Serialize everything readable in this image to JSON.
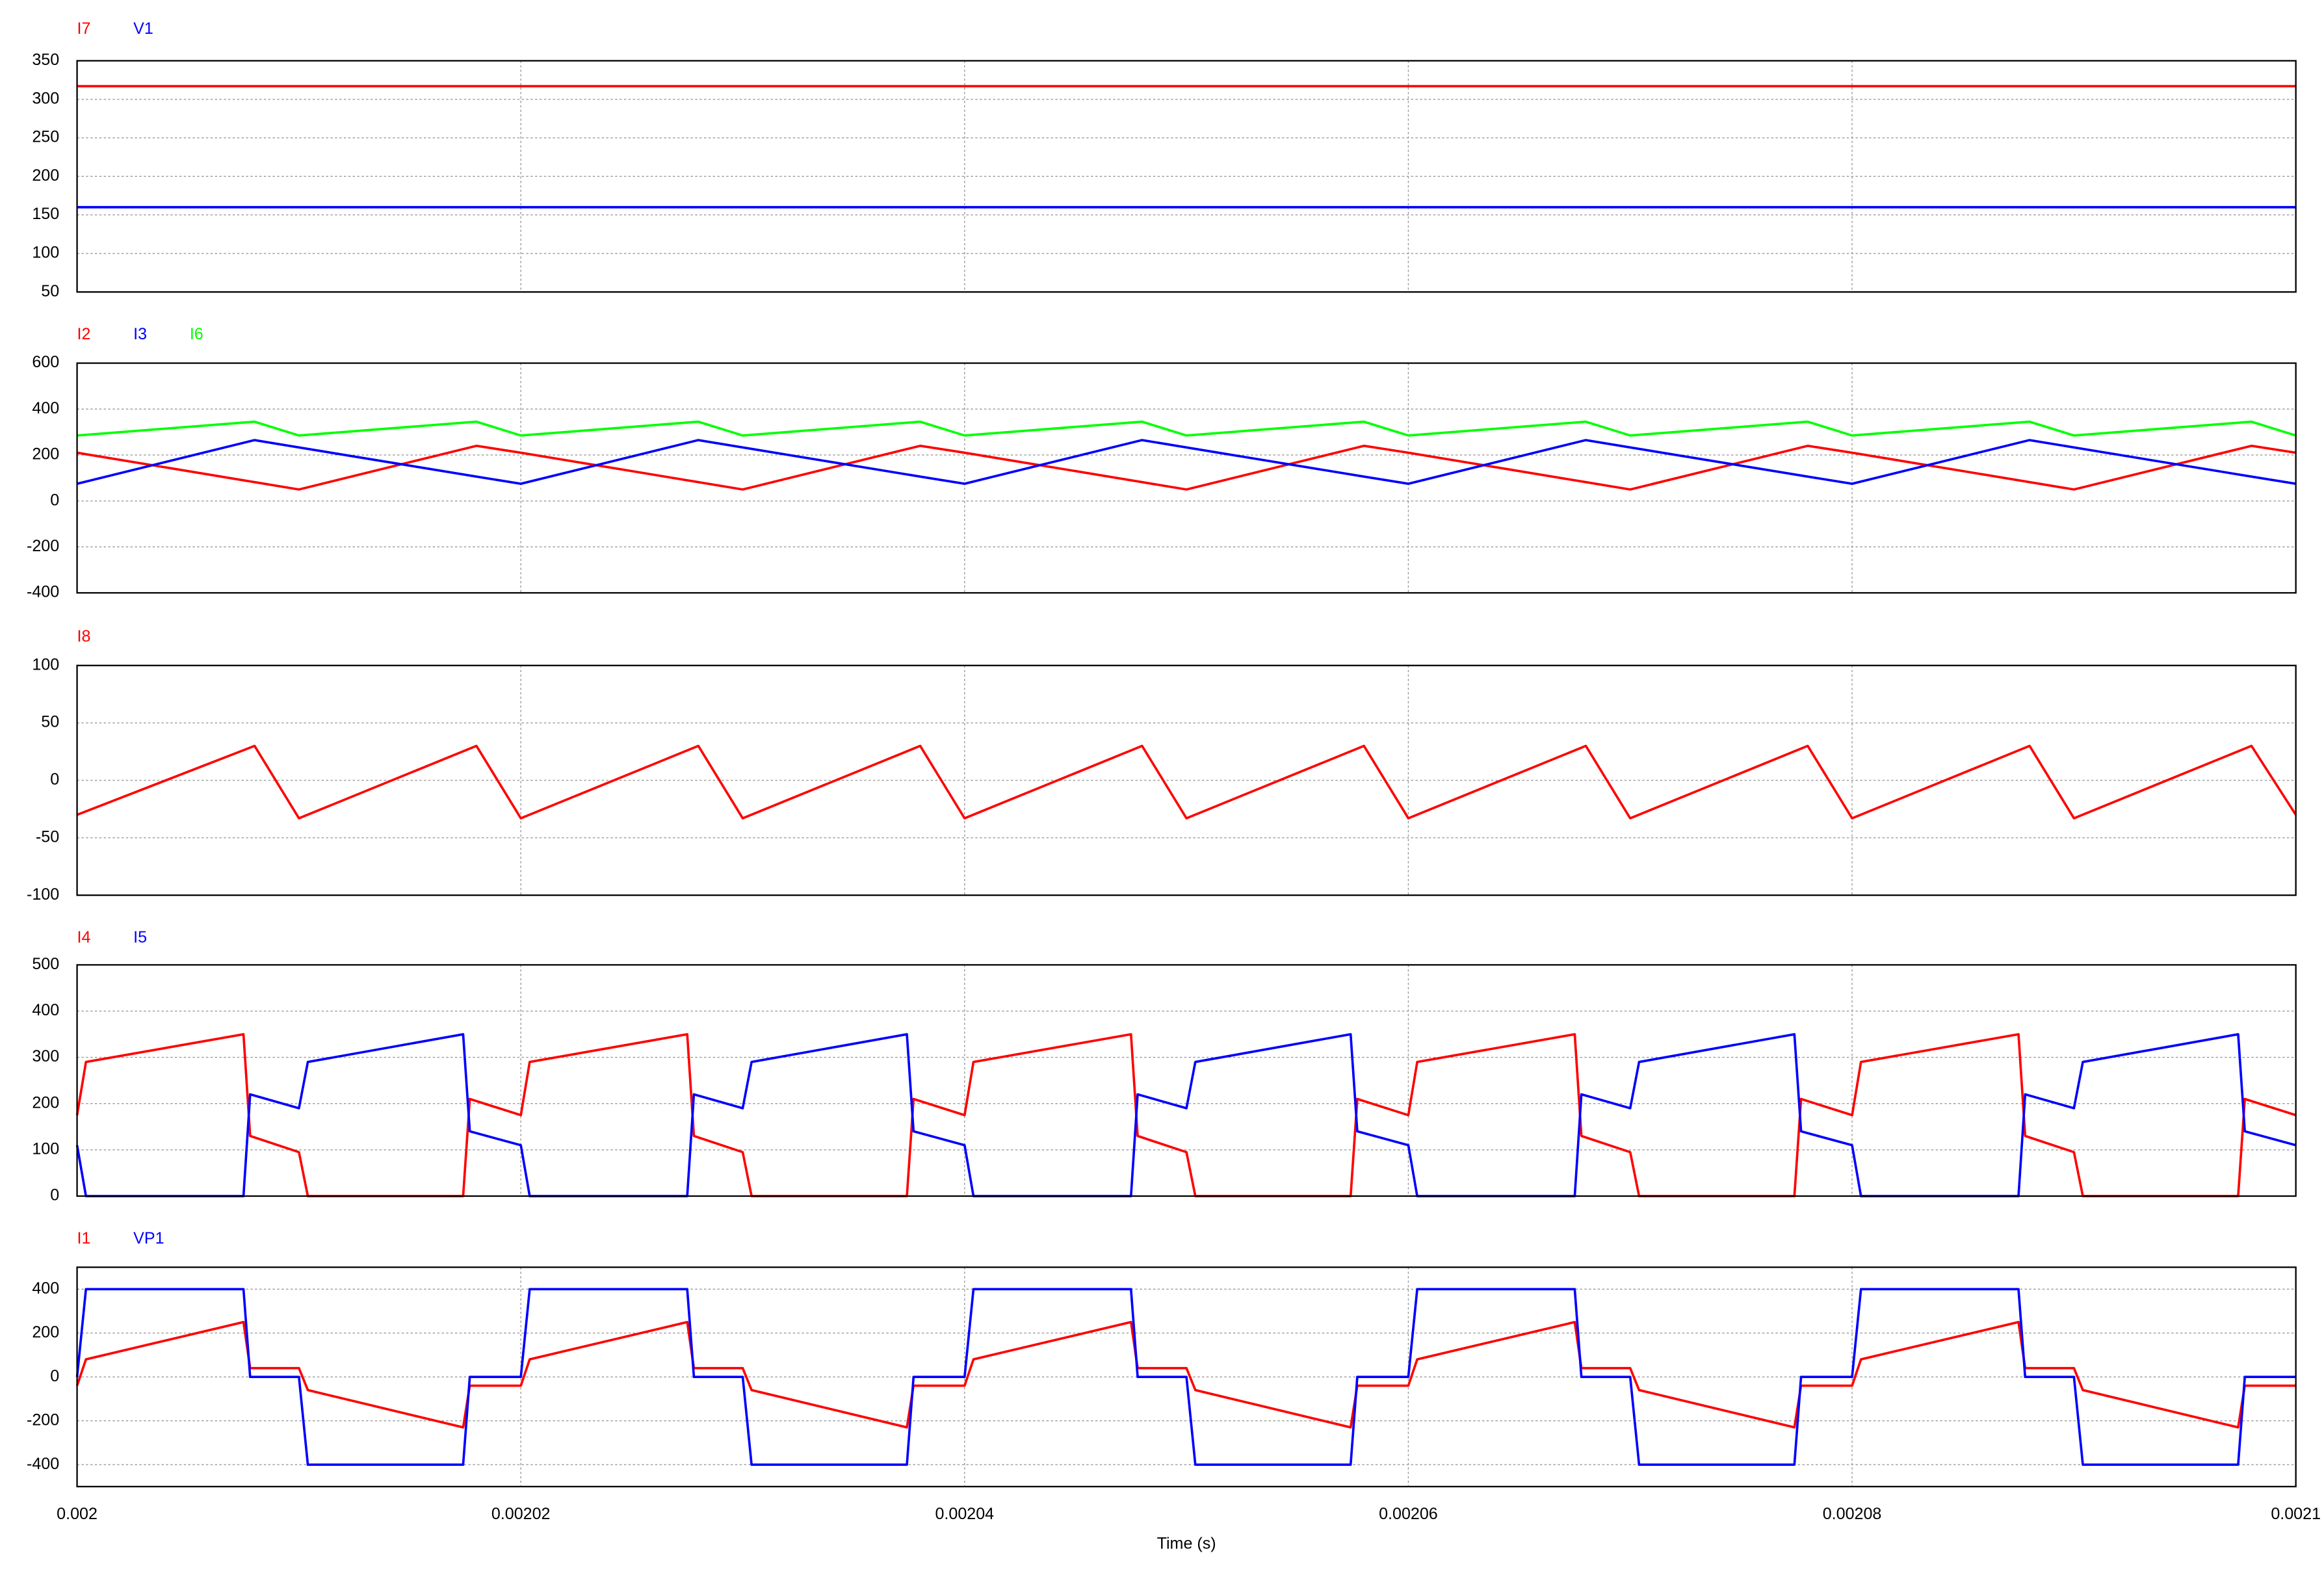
{
  "chart_data": [
    {
      "type": "line",
      "xlim": [
        0.002,
        0.0021
      ],
      "xticks": [
        0.002,
        0.00202,
        0.00204,
        0.00206,
        0.00208,
        0.0021
      ],
      "ylim": [
        50,
        350
      ],
      "yticks": [
        50,
        100,
        150,
        200,
        250,
        300,
        350
      ],
      "grid": true,
      "x": [
        0.002,
        0.00201,
        0.00202,
        0.00203,
        0.00204,
        0.00205,
        0.00206,
        0.00207,
        0.00208,
        0.00209,
        0.0021
      ],
      "series": [
        {
          "name": "I7",
          "color": "#ff0000",
          "values": [
            317,
            317,
            317,
            317,
            317,
            317,
            317,
            317,
            317,
            317,
            317
          ]
        },
        {
          "name": "V1",
          "color": "#0000ff",
          "values": [
            160,
            160,
            160,
            160,
            160,
            160,
            160,
            160,
            160,
            160,
            160
          ]
        }
      ]
    },
    {
      "type": "line",
      "xlim": [
        0.002,
        0.0021
      ],
      "xticks": [
        0.002,
        0.00202,
        0.00204,
        0.00206,
        0.00208,
        0.0021
      ],
      "ylim": [
        -400,
        600
      ],
      "yticks": [
        -400,
        -200,
        0,
        200,
        400,
        600
      ],
      "grid": true,
      "x": [
        0.002,
        0.002008,
        0.00201,
        0.002018,
        0.00202,
        0.002028,
        0.00203,
        0.002038,
        0.00204,
        0.002048,
        0.00205,
        0.002058,
        0.00206,
        0.002068,
        0.00207,
        0.002078,
        0.00208,
        0.002088,
        0.00209,
        0.002098,
        0.0021
      ],
      "series": [
        {
          "name": "I2",
          "color": "#ff0000",
          "values": [
            210,
            82,
            50,
            240,
            210,
            82,
            50,
            240,
            210,
            82,
            50,
            240,
            210,
            82,
            50,
            240,
            210,
            82,
            50,
            240,
            210
          ]
        },
        {
          "name": "I3",
          "color": "#0000ff",
          "values": [
            75,
            265,
            233,
            106,
            75,
            265,
            233,
            106,
            75,
            265,
            233,
            106,
            75,
            265,
            233,
            106,
            75,
            265,
            233,
            106,
            75
          ]
        },
        {
          "name": "I6",
          "color": "#00ff00",
          "values": [
            285,
            345,
            285,
            345,
            285,
            345,
            285,
            345,
            285,
            345,
            285,
            345,
            285,
            345,
            285,
            345,
            285,
            345,
            285,
            345,
            285
          ]
        }
      ]
    },
    {
      "type": "line",
      "xlim": [
        0.002,
        0.0021
      ],
      "xticks": [
        0.002,
        0.00202,
        0.00204,
        0.00206,
        0.00208,
        0.0021
      ],
      "ylim": [
        -100,
        100
      ],
      "yticks": [
        -100,
        -50,
        0,
        50,
        100
      ],
      "grid": true,
      "x": [
        0.002,
        0.002008,
        0.00201,
        0.002018,
        0.00202,
        0.002028,
        0.00203,
        0.002038,
        0.00204,
        0.002048,
        0.00205,
        0.002058,
        0.00206,
        0.002068,
        0.00207,
        0.002078,
        0.00208,
        0.002088,
        0.00209,
        0.002098,
        0.0021
      ],
      "series": [
        {
          "name": "I8",
          "color": "#ff0000",
          "values": [
            -30,
            30,
            -33,
            30,
            -33,
            30,
            -33,
            30,
            -33,
            30,
            -33,
            30,
            -33,
            30,
            -33,
            30,
            -33,
            30,
            -33,
            30,
            -30
          ]
        }
      ]
    },
    {
      "type": "line",
      "xlim": [
        0.002,
        0.0021
      ],
      "xticks": [
        0.002,
        0.00202,
        0.00204,
        0.00206,
        0.00208,
        0.0021
      ],
      "ylim": [
        0,
        500
      ],
      "yticks": [
        0,
        100,
        200,
        300,
        400,
        500
      ],
      "grid": true,
      "x": [
        0.002,
        0.0020004,
        0.0020075,
        0.0020078,
        0.00201,
        0.0020104,
        0.0020174,
        0.0020177,
        0.00202,
        0.0020204,
        0.0020275,
        0.0020278,
        0.00203,
        0.0020304,
        0.0020374,
        0.0020377,
        0.00204,
        0.0020404,
        0.0020475,
        0.0020478,
        0.00205,
        0.0020504,
        0.0020574,
        0.0020577,
        0.00206,
        0.0020604,
        0.0020675,
        0.0020678,
        0.00207,
        0.0020704,
        0.0020774,
        0.0020777,
        0.00208,
        0.0020804,
        0.0020875,
        0.0020878,
        0.00209,
        0.0020904,
        0.0020974,
        0.0020977,
        0.0021
      ],
      "series": [
        {
          "name": "I4",
          "color": "#ff0000",
          "values": [
            175,
            290,
            350,
            130,
            95,
            0,
            0,
            210,
            175,
            290,
            350,
            130,
            95,
            0,
            0,
            210,
            175,
            290,
            350,
            130,
            95,
            0,
            0,
            210,
            175,
            290,
            350,
            130,
            95,
            0,
            0,
            210,
            175,
            290,
            350,
            130,
            95,
            0,
            0,
            210,
            175
          ]
        },
        {
          "name": "I5",
          "color": "#0000ff",
          "values": [
            110,
            0,
            0,
            220,
            190,
            290,
            350,
            140,
            110,
            0,
            0,
            220,
            190,
            290,
            350,
            140,
            110,
            0,
            0,
            220,
            190,
            290,
            350,
            140,
            110,
            0,
            0,
            220,
            190,
            290,
            350,
            140,
            110,
            0,
            0,
            220,
            190,
            290,
            350,
            140,
            110
          ]
        }
      ]
    },
    {
      "type": "line",
      "xlim": [
        0.002,
        0.0021
      ],
      "xticks": [
        0.002,
        0.00202,
        0.00204,
        0.00206,
        0.00208,
        0.0021
      ],
      "xlabel": "Time (s)",
      "ylim": [
        -500,
        500
      ],
      "yticks": [
        -400,
        -200,
        0,
        200,
        400
      ],
      "grid": true,
      "x": [
        0.002,
        0.0020004,
        0.0020075,
        0.0020078,
        0.00201,
        0.0020104,
        0.0020174,
        0.0020177,
        0.00202,
        0.0020204,
        0.0020275,
        0.0020278,
        0.00203,
        0.0020304,
        0.0020374,
        0.0020377,
        0.00204,
        0.0020404,
        0.0020475,
        0.0020478,
        0.00205,
        0.0020504,
        0.0020574,
        0.0020577,
        0.00206,
        0.0020604,
        0.0020675,
        0.0020678,
        0.00207,
        0.0020704,
        0.0020774,
        0.0020777,
        0.00208,
        0.0020804,
        0.0020875,
        0.0020878,
        0.00209,
        0.0020904,
        0.0020974,
        0.0020977,
        0.0021
      ],
      "series": [
        {
          "name": "I1",
          "color": "#ff0000",
          "values": [
            -40,
            80,
            250,
            40,
            40,
            -60,
            -230,
            -40,
            -40,
            80,
            250,
            40,
            40,
            -60,
            -230,
            -40,
            -40,
            80,
            250,
            40,
            40,
            -60,
            -230,
            -40,
            -40,
            80,
            250,
            40,
            40,
            -60,
            -230,
            -40,
            -40,
            80,
            250,
            40,
            40,
            -60,
            -230,
            -40,
            -40
          ]
        },
        {
          "name": "VP1",
          "color": "#0000ff",
          "values": [
            0,
            400,
            400,
            0,
            0,
            -400,
            -400,
            0,
            0,
            400,
            400,
            0,
            0,
            -400,
            -400,
            0,
            0,
            400,
            400,
            0,
            0,
            -400,
            -400,
            0,
            0,
            400,
            400,
            0,
            0,
            -400,
            -400,
            0,
            0,
            400,
            400,
            0,
            0,
            -400,
            -400,
            0,
            0
          ]
        }
      ]
    }
  ]
}
